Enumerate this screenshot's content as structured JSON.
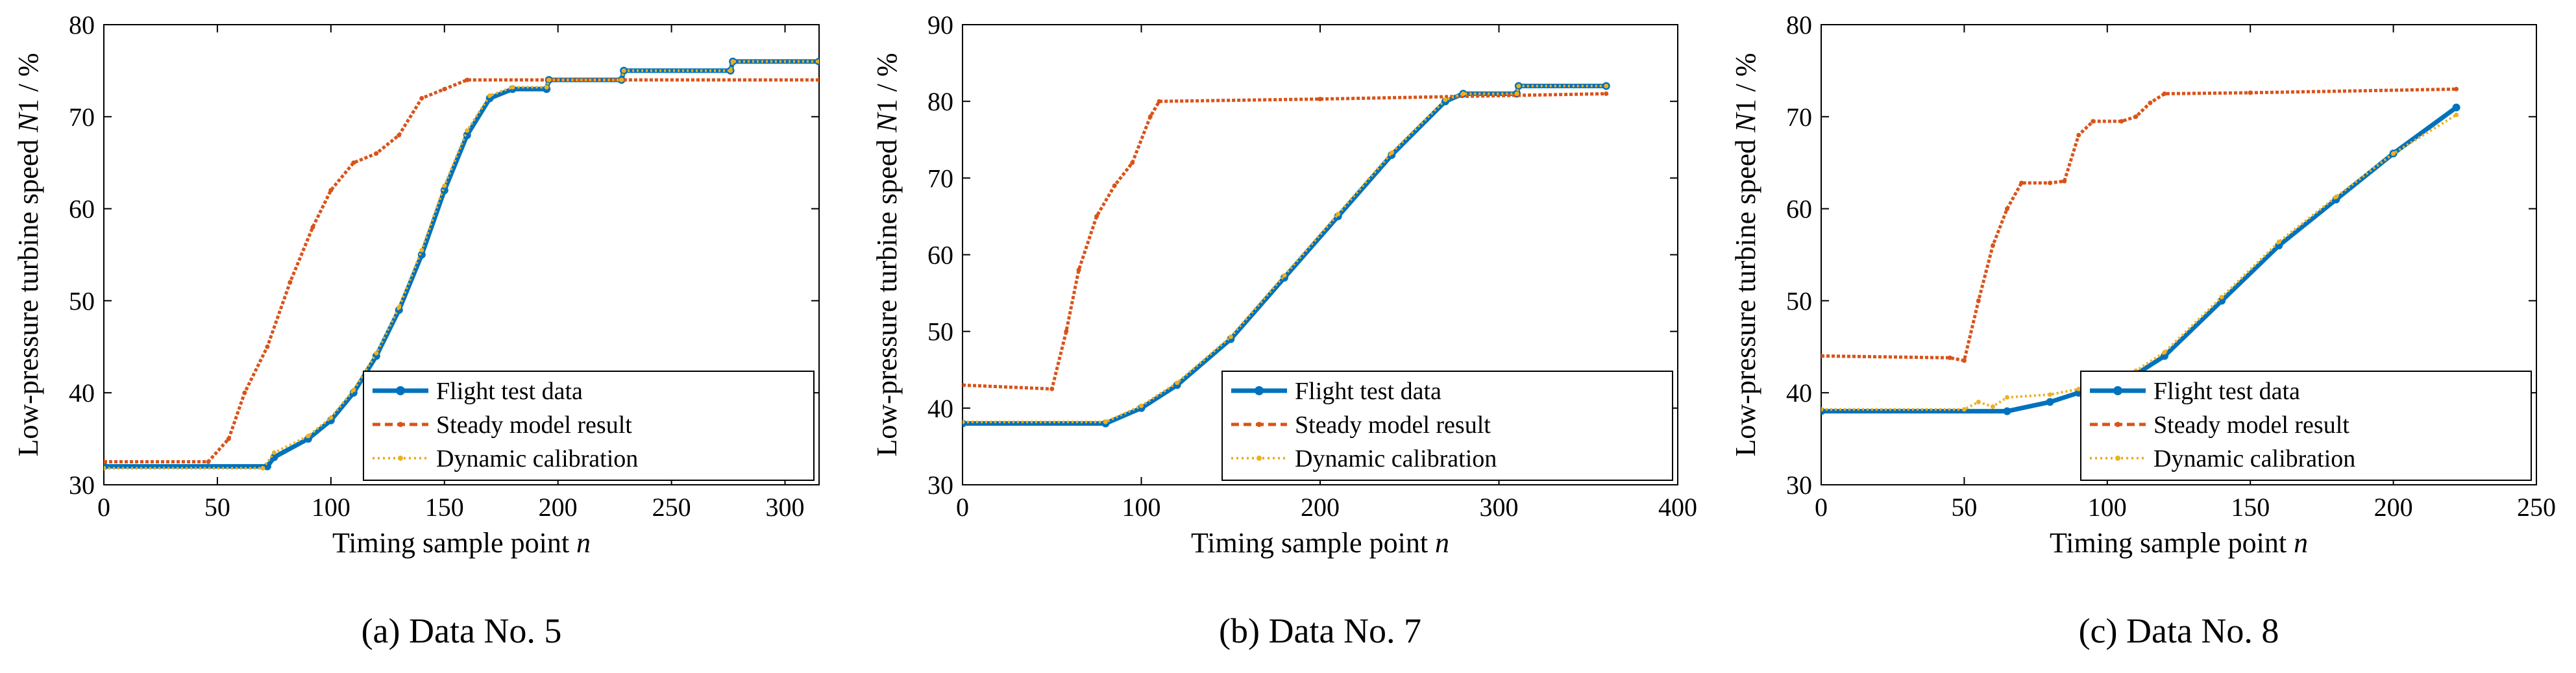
{
  "figure": {
    "colors": {
      "flight": "#0072BD",
      "steady": "#D95319",
      "dynamic": "#EDB120"
    }
  },
  "chart_data": [
    {
      "type": "line",
      "caption": "(a)  Data No. 5",
      "xlabel": "Timing sample point n",
      "xlabel_main": "Timing sample point ",
      "xlabel_var": "n",
      "ylabel": "Low-pressure turbine speed N1 / %",
      "ylabel_pre": "Low-pressure turbine speed ",
      "ylabel_var": "N",
      "ylabel_post": "1 / %",
      "xlim": [
        0,
        315
      ],
      "ylim": [
        30,
        80
      ],
      "xticks": [
        0,
        50,
        100,
        150,
        200,
        250,
        300
      ],
      "xtick_labels": [
        "0",
        "50",
        "100",
        "150",
        "200",
        "250",
        "300"
      ],
      "yticks": [
        30,
        40,
        50,
        60,
        70,
        80
      ],
      "ytick_labels": [
        "30",
        "40",
        "50",
        "60",
        "70",
        "80"
      ],
      "grid": false,
      "legend_position": "bottom-right",
      "series": [
        {
          "name": "Flight test data",
          "style": "solid-dot",
          "color": "#0072BD",
          "points": [
            [
              0,
              32
            ],
            [
              72,
              32
            ],
            [
              75,
              33
            ],
            [
              90,
              35
            ],
            [
              100,
              37
            ],
            [
              110,
              40
            ],
            [
              120,
              44
            ],
            [
              130,
              49
            ],
            [
              140,
              55
            ],
            [
              150,
              62
            ],
            [
              160,
              68
            ],
            [
              170,
              72
            ],
            [
              180,
              73
            ],
            [
              195,
              73
            ],
            [
              196,
              74
            ],
            [
              228,
              74
            ],
            [
              229,
              75
            ],
            [
              276,
              75
            ],
            [
              277,
              76
            ],
            [
              315,
              76
            ]
          ]
        },
        {
          "name": "Steady model result",
          "style": "dashed",
          "color": "#D95319",
          "points": [
            [
              0,
              32.5
            ],
            [
              46,
              32.5
            ],
            [
              55,
              35
            ],
            [
              62,
              40
            ],
            [
              72,
              45
            ],
            [
              82,
              52
            ],
            [
              92,
              58
            ],
            [
              100,
              62
            ],
            [
              110,
              65
            ],
            [
              120,
              66
            ],
            [
              130,
              68
            ],
            [
              140,
              72
            ],
            [
              150,
              73
            ],
            [
              160,
              74
            ],
            [
              315,
              74
            ]
          ]
        },
        {
          "name": "Dynamic calibration",
          "style": "dotted",
          "color": "#EDB120",
          "points": [
            [
              0,
              31.8
            ],
            [
              70,
              31.8
            ],
            [
              75,
              33.5
            ],
            [
              90,
              35.3
            ],
            [
              100,
              37.3
            ],
            [
              110,
              40.3
            ],
            [
              120,
              44.3
            ],
            [
              130,
              49.3
            ],
            [
              140,
              55.5
            ],
            [
              150,
              62.5
            ],
            [
              160,
              68.5
            ],
            [
              170,
              72.3
            ],
            [
              180,
              73.2
            ],
            [
              195,
              73.2
            ],
            [
              196,
              74
            ],
            [
              228,
              74
            ],
            [
              229,
              75
            ],
            [
              276,
              75
            ],
            [
              277,
              76
            ],
            [
              315,
              76
            ]
          ]
        }
      ]
    },
    {
      "type": "line",
      "caption": "(b)  Data No. 7",
      "xlabel": "Timing sample point n",
      "xlabel_main": "Timing sample point ",
      "xlabel_var": "n",
      "ylabel": "Low-pressure turbine speed N1 / %",
      "ylabel_pre": "Low-pressure turbine speed ",
      "ylabel_var": "N",
      "ylabel_post": "1 / %",
      "xlim": [
        0,
        400
      ],
      "ylim": [
        30,
        90
      ],
      "xticks": [
        0,
        100,
        200,
        300,
        400
      ],
      "xtick_labels": [
        "0",
        "100",
        "200",
        "300",
        "400"
      ],
      "yticks": [
        30,
        40,
        50,
        60,
        70,
        80,
        90
      ],
      "ytick_labels": [
        "30",
        "40",
        "50",
        "60",
        "70",
        "80",
        "90"
      ],
      "grid": false,
      "legend_position": "bottom-right",
      "series": [
        {
          "name": "Flight test data",
          "style": "solid-dot",
          "color": "#0072BD",
          "points": [
            [
              0,
              38
            ],
            [
              80,
              38
            ],
            [
              100,
              40
            ],
            [
              120,
              43
            ],
            [
              150,
              49
            ],
            [
              180,
              57
            ],
            [
              210,
              65
            ],
            [
              240,
              73
            ],
            [
              270,
              80
            ],
            [
              280,
              81
            ],
            [
              310,
              81
            ],
            [
              311,
              82
            ],
            [
              360,
              82
            ]
          ]
        },
        {
          "name": "Steady model result",
          "style": "dashed",
          "color": "#D95319",
          "points": [
            [
              0,
              43
            ],
            [
              50,
              42.5
            ],
            [
              58,
              50
            ],
            [
              65,
              58
            ],
            [
              75,
              65
            ],
            [
              85,
              69
            ],
            [
              95,
              72
            ],
            [
              105,
              78
            ],
            [
              110,
              80
            ],
            [
              200,
              80.3
            ],
            [
              360,
              81
            ]
          ]
        },
        {
          "name": "Dynamic calibration",
          "style": "dotted",
          "color": "#EDB120",
          "points": [
            [
              0,
              38.2
            ],
            [
              80,
              38.2
            ],
            [
              100,
              40.3
            ],
            [
              120,
              43.3
            ],
            [
              150,
              49.3
            ],
            [
              180,
              57.3
            ],
            [
              210,
              65.3
            ],
            [
              240,
              73.3
            ],
            [
              270,
              80.2
            ],
            [
              280,
              81
            ],
            [
              310,
              81
            ],
            [
              311,
              82
            ],
            [
              360,
              82
            ]
          ]
        }
      ]
    },
    {
      "type": "line",
      "caption": "(c)  Data No. 8",
      "xlabel": "Timing sample point n",
      "xlabel_main": "Timing sample point ",
      "xlabel_var": "n",
      "ylabel": "Low-pressure turbine speed N1 / %",
      "ylabel_pre": "Low-pressure turbine speed ",
      "ylabel_var": "N",
      "ylabel_post": "1 / %",
      "xlim": [
        0,
        250
      ],
      "ylim": [
        30,
        80
      ],
      "xticks": [
        0,
        50,
        100,
        150,
        200,
        250
      ],
      "xtick_labels": [
        "0",
        "50",
        "100",
        "150",
        "200",
        "250"
      ],
      "yticks": [
        30,
        40,
        50,
        60,
        70,
        80
      ],
      "ytick_labels": [
        "30",
        "40",
        "50",
        "60",
        "70",
        "80"
      ],
      "grid": false,
      "legend_position": "bottom-right",
      "series": [
        {
          "name": "Flight test data",
          "style": "solid-dot",
          "color": "#0072BD",
          "points": [
            [
              0,
              38
            ],
            [
              65,
              38
            ],
            [
              80,
              39
            ],
            [
              90,
              40
            ],
            [
              100,
              41
            ],
            [
              110,
              42
            ],
            [
              120,
              44
            ],
            [
              140,
              50
            ],
            [
              160,
              56
            ],
            [
              180,
              61
            ],
            [
              200,
              66
            ],
            [
              222,
              71
            ]
          ]
        },
        {
          "name": "Steady model result",
          "style": "dashed",
          "color": "#D95319",
          "points": [
            [
              0,
              44
            ],
            [
              45,
              43.8
            ],
            [
              50,
              43.5
            ],
            [
              55,
              50
            ],
            [
              60,
              56
            ],
            [
              65,
              60
            ],
            [
              70,
              62.8
            ],
            [
              80,
              62.8
            ],
            [
              85,
              63
            ],
            [
              90,
              68
            ],
            [
              95,
              69.5
            ],
            [
              105,
              69.5
            ],
            [
              110,
              70
            ],
            [
              115,
              71.5
            ],
            [
              120,
              72.5
            ],
            [
              150,
              72.6
            ],
            [
              222,
              73
            ]
          ]
        },
        {
          "name": "Dynamic calibration",
          "style": "dotted",
          "color": "#EDB120",
          "points": [
            [
              0,
              38.2
            ],
            [
              50,
              38.2
            ],
            [
              55,
              39
            ],
            [
              60,
              38.5
            ],
            [
              65,
              39.5
            ],
            [
              80,
              39.8
            ],
            [
              90,
              40.4
            ],
            [
              100,
              41.3
            ],
            [
              110,
              42.4
            ],
            [
              120,
              44.4
            ],
            [
              140,
              50.4
            ],
            [
              160,
              56.4
            ],
            [
              180,
              61.3
            ],
            [
              200,
              66
            ],
            [
              222,
              70.2
            ]
          ]
        }
      ]
    }
  ]
}
